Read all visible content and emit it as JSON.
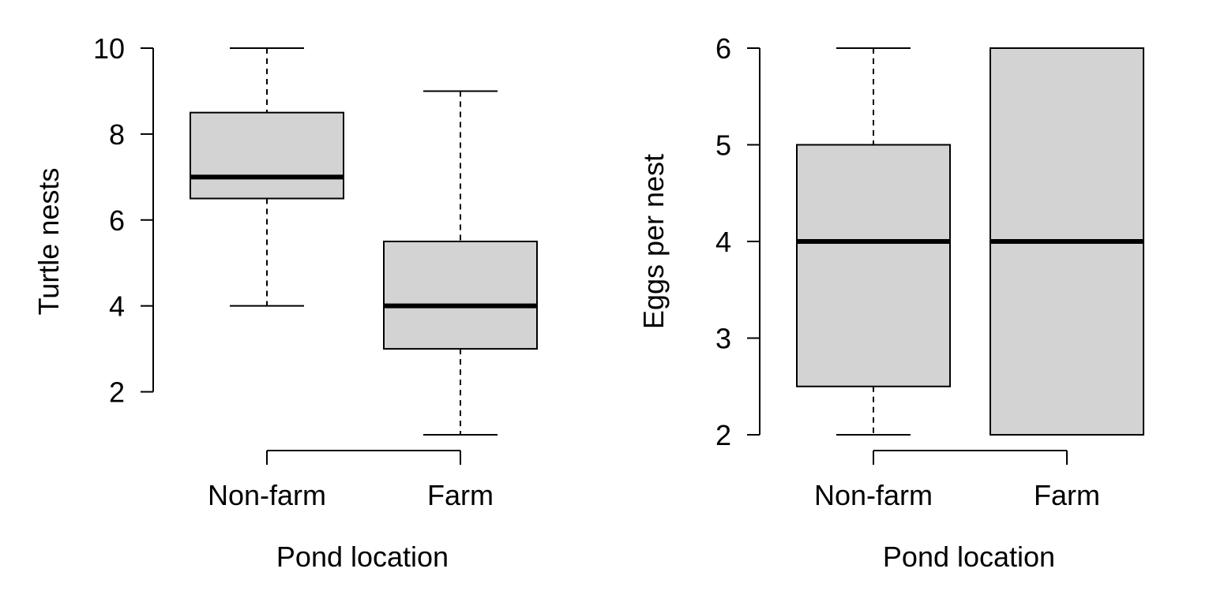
{
  "chart_data": [
    {
      "type": "box",
      "ylabel": "Turtle nests",
      "xlabel": "Pond location",
      "ylim": [
        1,
        10
      ],
      "yticks": [
        2,
        4,
        6,
        8,
        10
      ],
      "categories": [
        "Non-farm",
        "Farm"
      ],
      "boxes": [
        {
          "category": "Non-farm",
          "min": 4,
          "q1": 6.5,
          "median": 7,
          "q3": 8.5,
          "max": 10
        },
        {
          "category": "Farm",
          "min": 1,
          "q1": 3,
          "median": 4,
          "q3": 5.5,
          "max": 9
        }
      ],
      "grid": false
    },
    {
      "type": "box",
      "ylabel": "Eggs per nest",
      "xlabel": "Pond location",
      "ylim": [
        2,
        6
      ],
      "yticks": [
        2,
        3,
        4,
        5,
        6
      ],
      "categories": [
        "Non-farm",
        "Farm"
      ],
      "boxes": [
        {
          "category": "Non-farm",
          "min": 2,
          "q1": 2.5,
          "median": 4,
          "q3": 5,
          "max": 6
        },
        {
          "category": "Farm",
          "min": 2,
          "q1": 2,
          "median": 4,
          "q3": 6,
          "max": 6
        }
      ],
      "grid": false
    }
  ],
  "colors": {
    "box_fill": "#d3d3d3",
    "line": "#000000"
  }
}
